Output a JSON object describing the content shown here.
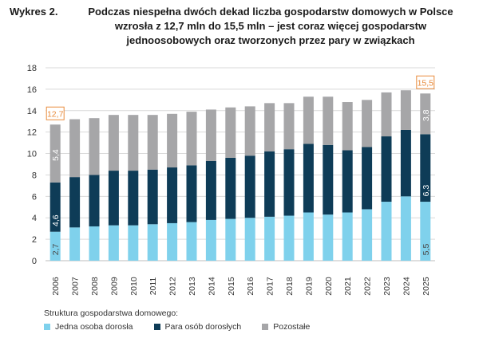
{
  "header": {
    "figure_label": "Wykres 2.",
    "title_lines": [
      "Podczas niespełna dwóch dekad liczba gospodarstw domowych w Polsce",
      "wzrosła z 12,7 mln do 15,5 mln – jest coraz więcej gospodarstw",
      "jednoosobowych oraz tworzonych przez pary w związkach"
    ]
  },
  "colors": {
    "single": "#7fd1ec",
    "couple": "#0e3c57",
    "other": "#a6a6a8",
    "highlight": "#e88b3c",
    "grid": "#d9d9d9"
  },
  "chart_data": {
    "type": "bar",
    "stacked": true,
    "categories": [
      "2006",
      "2007",
      "2008",
      "2009",
      "2010",
      "2011",
      "2012",
      "2013",
      "2014",
      "2015",
      "2016",
      "2017",
      "2018",
      "2019",
      "2020",
      "2021",
      "2022",
      "2023",
      "2024",
      "2025"
    ],
    "series": [
      {
        "name": "Jedna osoba dorosła",
        "values": [
          2.7,
          3.1,
          3.2,
          3.3,
          3.3,
          3.4,
          3.5,
          3.6,
          3.8,
          3.9,
          4.0,
          4.1,
          4.2,
          4.5,
          4.3,
          4.5,
          4.8,
          5.5,
          6.0,
          5.5
        ]
      },
      {
        "name": "Para osób dorosłych",
        "values": [
          4.6,
          4.7,
          4.8,
          5.1,
          5.1,
          5.1,
          5.2,
          5.3,
          5.5,
          5.7,
          5.8,
          6.1,
          6.2,
          6.4,
          6.5,
          5.8,
          5.8,
          6.1,
          6.2,
          6.3
        ]
      },
      {
        "name": "Pozostałe",
        "values": [
          5.4,
          5.4,
          5.3,
          5.2,
          5.2,
          5.1,
          5.0,
          5.0,
          4.8,
          4.7,
          4.6,
          4.5,
          4.3,
          4.4,
          4.5,
          4.5,
          4.4,
          4.1,
          3.7,
          3.8
        ]
      }
    ],
    "value_labels": [
      {
        "category": "2006",
        "series": "Jedna osoba dorosła",
        "text": "2,7"
      },
      {
        "category": "2006",
        "series": "Para osób dorosłych",
        "text": "4,6"
      },
      {
        "category": "2006",
        "series": "Pozostałe",
        "text": "5,4"
      },
      {
        "category": "2025",
        "series": "Jedna osoba dorosła",
        "text": "5,5"
      },
      {
        "category": "2025",
        "series": "Para osób dorosłych",
        "text": "6,3"
      },
      {
        "category": "2025",
        "series": "Pozostałe",
        "text": "3,8"
      }
    ],
    "total_labels": [
      {
        "category": "2006",
        "text": "12,7"
      },
      {
        "category": "2025",
        "text": "15,5"
      }
    ],
    "ylim": [
      0,
      18
    ],
    "yticks": [
      0,
      2,
      4,
      6,
      8,
      10,
      12,
      14,
      16,
      18
    ],
    "grid": true,
    "legend_position": "bottom-left"
  },
  "legend": {
    "title": "Struktura gospodarstwa domowego:"
  }
}
